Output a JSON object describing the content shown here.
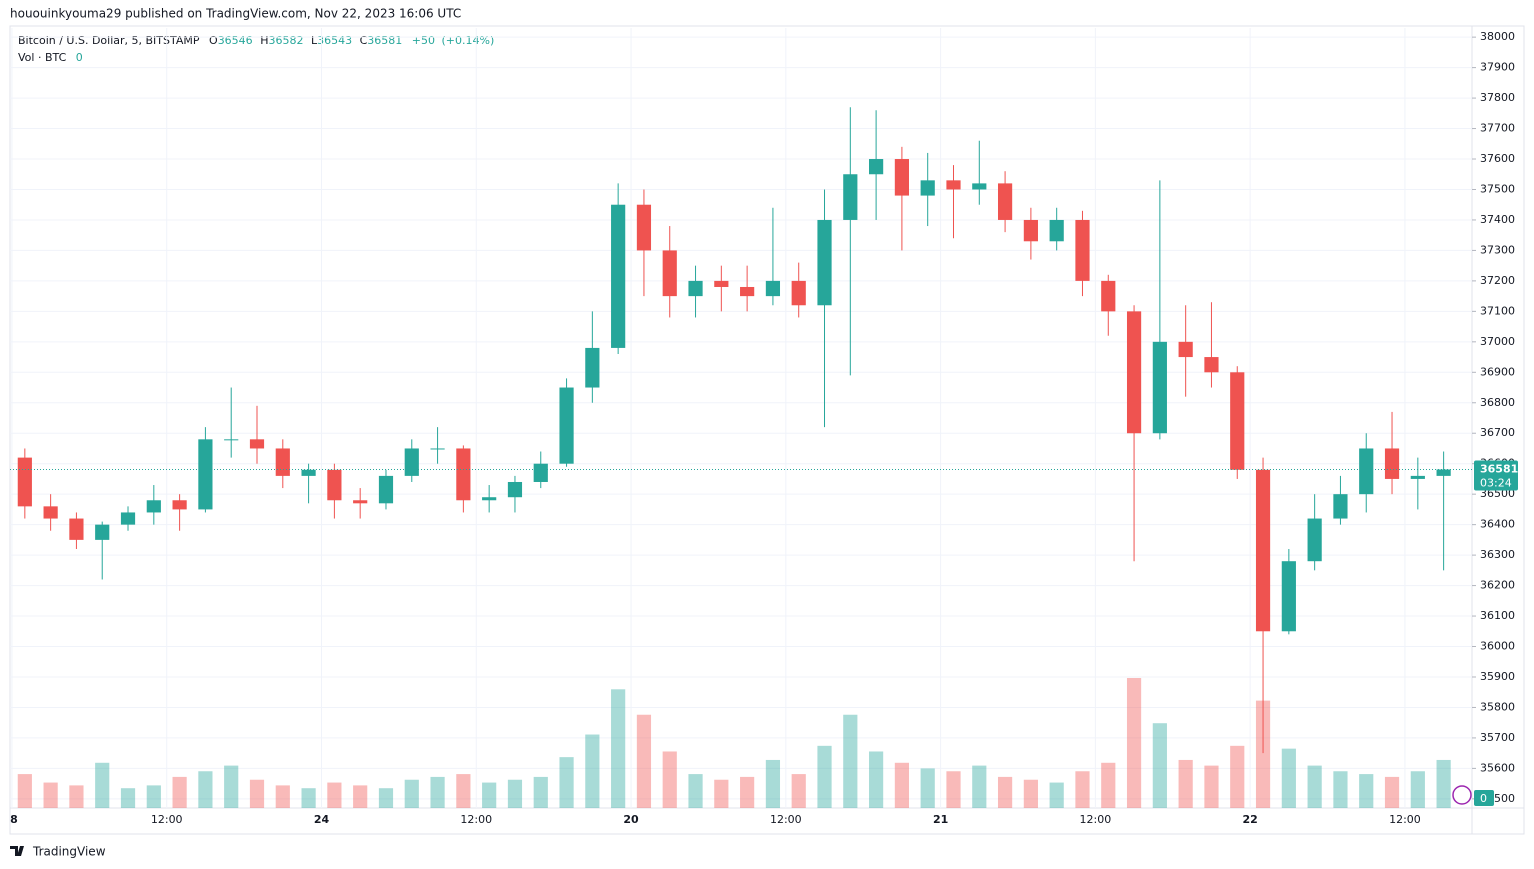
{
  "chart_data": {
    "type": "candlestick",
    "published": "hououinkyouma29 published on TradingView.com, Nov 22, 2023 16:06 UTC",
    "symbol": "Bitcoin / U.S. Dollar, 5, BITSTAMP",
    "legend": {
      "o_label": "O",
      "open": 36546,
      "h_label": "H",
      "high": 36582,
      "l_label": "L",
      "low": 36543,
      "c_label": "C",
      "close": 36581,
      "change": {
        "value": 50,
        "label": "+50"
      },
      "change_pct": {
        "value": 0.14,
        "label": "(+0.14%)"
      }
    },
    "volume_legend": {
      "name": "Vol · BTC",
      "value": 0
    },
    "last_price": 36581,
    "countdown": "03:24",
    "branding": "TradingView",
    "up_color": "#26a69a",
    "down_color": "#ef5350",
    "grid": true,
    "x": [
      1,
      3,
      5,
      7,
      9,
      11,
      13,
      15,
      17,
      19,
      21,
      23,
      25,
      27,
      29,
      31,
      33,
      35,
      37,
      39,
      41,
      43,
      45,
      47,
      49,
      51,
      53,
      55,
      57,
      59,
      61,
      63,
      65,
      67,
      69,
      71,
      73,
      75,
      77,
      79,
      81,
      83,
      85,
      87,
      89,
      91,
      93,
      95,
      97,
      99,
      101,
      103,
      105,
      107,
      109,
      111
    ],
    "open": [
      36620,
      36460,
      36420,
      36350,
      36400,
      36440,
      36480,
      36450,
      36680,
      36680,
      36650,
      36560,
      36580,
      36480,
      36470,
      36560,
      36650,
      36650,
      36480,
      36490,
      36540,
      36600,
      36850,
      36980,
      37450,
      37300,
      37150,
      37200,
      37180,
      37150,
      37200,
      37120,
      37400,
      37550,
      37600,
      37480,
      37530,
      37500,
      37520,
      37400,
      37330,
      37400,
      37200,
      37100,
      36700,
      37000,
      36950,
      36900,
      36580,
      36050,
      36280,
      36420,
      36500,
      36650,
      36550,
      36560
    ],
    "high": [
      36650,
      36500,
      36440,
      36410,
      36460,
      36530,
      36500,
      36720,
      36850,
      36790,
      36680,
      36600,
      36600,
      36520,
      36580,
      36680,
      36720,
      36660,
      36530,
      36560,
      36640,
      36880,
      37100,
      37520,
      37500,
      37380,
      37250,
      37250,
      37250,
      37440,
      37260,
      37500,
      37770,
      37760,
      37640,
      37620,
      37580,
      37660,
      37560,
      37440,
      37440,
      37430,
      37220,
      37120,
      37530,
      37120,
      37130,
      36920,
      36620,
      36320,
      36500,
      36560,
      36700,
      36770,
      36620,
      36640
    ],
    "low": [
      36420,
      36380,
      36320,
      36220,
      36380,
      36400,
      36380,
      36440,
      36620,
      36600,
      36520,
      36470,
      36420,
      36420,
      36450,
      36540,
      36600,
      36440,
      36440,
      36440,
      36520,
      36590,
      36800,
      36960,
      37150,
      37080,
      37080,
      37100,
      37100,
      37120,
      37080,
      36720,
      36890,
      37400,
      37300,
      37380,
      37340,
      37450,
      37360,
      37270,
      37300,
      37150,
      37020,
      36280,
      36680,
      36820,
      36850,
      36550,
      35650,
      36040,
      36250,
      36400,
      36440,
      36500,
      36450,
      36250
    ],
    "close": [
      36460,
      36420,
      36350,
      36400,
      36440,
      36480,
      36450,
      36680,
      36680,
      36650,
      36560,
      36580,
      36480,
      36470,
      36560,
      36650,
      36650,
      36480,
      36490,
      36540,
      36600,
      36850,
      36980,
      37450,
      37300,
      37150,
      37200,
      37180,
      37150,
      37200,
      37120,
      37400,
      37550,
      37600,
      37480,
      37530,
      37500,
      37520,
      37400,
      37330,
      37400,
      37200,
      37100,
      36700,
      37000,
      36950,
      36900,
      36580,
      36050,
      36280,
      36420,
      36500,
      36650,
      36550,
      36560,
      36581
    ],
    "volume": [
      120,
      90,
      80,
      160,
      70,
      80,
      110,
      130,
      150,
      100,
      80,
      70,
      90,
      80,
      70,
      100,
      110,
      120,
      90,
      100,
      110,
      180,
      260,
      420,
      330,
      200,
      120,
      100,
      110,
      170,
      120,
      220,
      330,
      200,
      160,
      140,
      130,
      150,
      110,
      100,
      90,
      130,
      160,
      460,
      300,
      170,
      150,
      220,
      380,
      210,
      150,
      130,
      120,
      110,
      130,
      170
    ],
    "xlim": [
      -0.15,
      113.2
    ],
    "ylim": [
      35470,
      38030
    ],
    "xticks": [
      {
        "value": 0,
        "label": "8"
      },
      {
        "value": 12,
        "label": "12:00"
      },
      24,
      {
        "value": 36,
        "label": "12:00"
      },
      {
        "value": 48,
        "label": "20"
      },
      {
        "value": 60,
        "label": "12:00"
      },
      {
        "value": 72,
        "label": "21"
      },
      {
        "value": 84,
        "label": "12:00"
      },
      {
        "value": 96,
        "label": "22"
      },
      {
        "value": 108,
        "label": "12:00"
      }
    ],
    "yticks": [
      35500,
      35600,
      35700,
      35800,
      35900,
      36000,
      36100,
      36200,
      36300,
      36400,
      36500,
      36600,
      36700,
      36800,
      36900,
      37000,
      37100,
      37200,
      37300,
      37400,
      37500,
      37600,
      37700,
      37800,
      37900,
      38000
    ]
  }
}
